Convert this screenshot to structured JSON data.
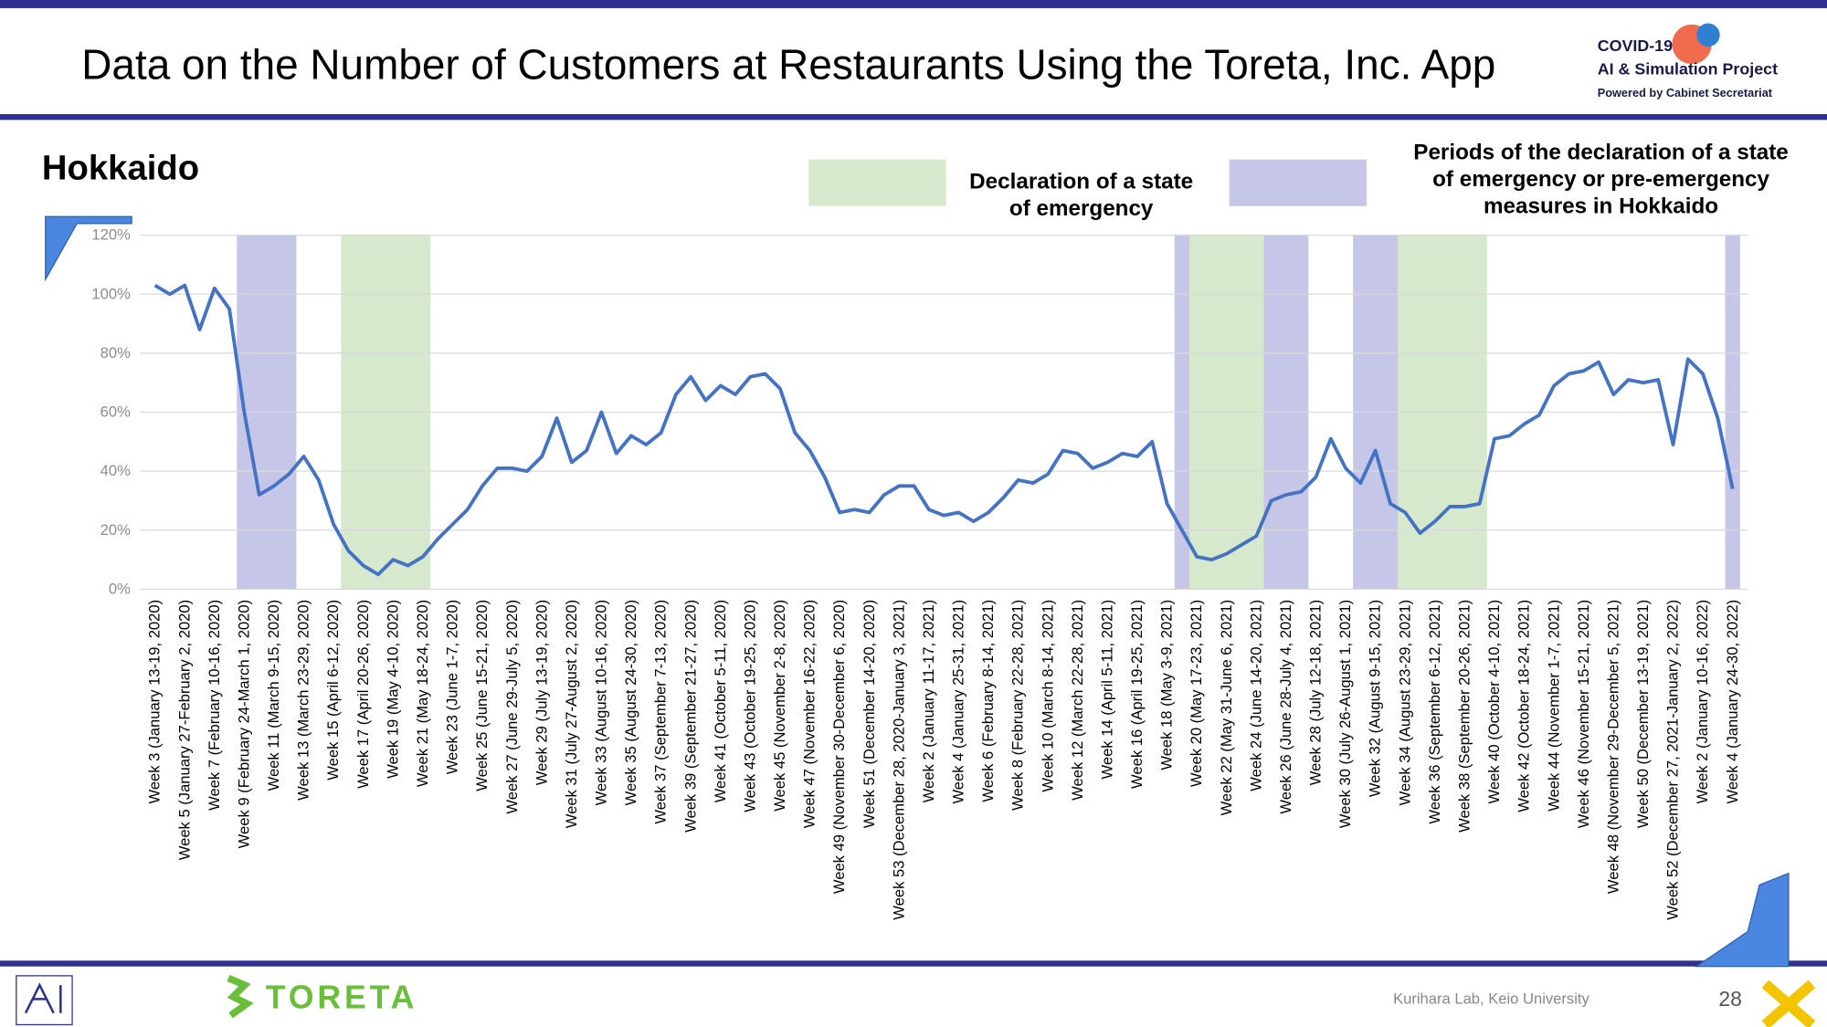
{
  "title": "Data on the Number of Customers at Restaurants Using the Toreta, Inc. App",
  "logo": {
    "line1": "COVID-19",
    "line2": "AI & Simulation Project",
    "line3": "Powered by Cabinet Secretariat"
  },
  "footer": {
    "brand": "TORETA",
    "credit": "Kurihara Lab, Keio University",
    "page": "28"
  },
  "chart_data": {
    "type": "line",
    "title": "Hokkaido",
    "color": "#4472c4",
    "grid": true,
    "ylim": [
      0,
      120
    ],
    "yticks": [
      {
        "value": 0,
        "label": "0%"
      },
      {
        "value": 20,
        "label": "20%"
      },
      {
        "value": 40,
        "label": "40%"
      },
      {
        "value": 60,
        "label": "60%"
      },
      {
        "value": 80,
        "label": "80%"
      },
      {
        "value": 100,
        "label": "100%"
      },
      {
        "value": 120,
        "label": "120%"
      }
    ],
    "categories": [
      "Week 3 (January 13-19, 2020)",
      null,
      "Week 5 (January 27-February 2, 2020)",
      null,
      "Week 7 (February 10-16, 2020)",
      null,
      "Week 9 (February 24-March 1, 2020)",
      null,
      "Week 11 (March 9-15, 2020)",
      null,
      "Week 13 (March 23-29, 2020)",
      null,
      "Week 15 (April 6-12, 2020)",
      null,
      "Week 17 (April 20-26, 2020)",
      null,
      "Week 19 (May 4-10, 2020)",
      null,
      "Week 21 (May 18-24, 2020)",
      null,
      "Week 23 (June 1-7, 2020)",
      null,
      "Week 25 (June 15-21, 2020)",
      null,
      "Week 27 (June 29-July 5, 2020)",
      null,
      "Week 29 (July 13-19, 2020)",
      null,
      "Week 31 (July 27-August 2, 2020)",
      null,
      "Week 33 (August 10-16, 2020)",
      null,
      "Week 35 (August 24-30, 2020)",
      null,
      "Week 37 (September 7-13, 2020)",
      null,
      "Week 39 (September 21-27, 2020)",
      null,
      "Week 41 (October 5-11, 2020)",
      null,
      "Week 43 (October 19-25, 2020)",
      null,
      "Week 45 (November 2-8, 2020)",
      null,
      "Week 47 (November 16-22, 2020)",
      null,
      "Week 49 (November 30-December 6, 2020)",
      null,
      "Week 51 (December 14-20, 2020)",
      null,
      "Week 53 (December 28, 2020-January 3, 2021)",
      null,
      "Week 2 (January 11-17, 2021)",
      null,
      "Week 4 (January 25-31, 2021)",
      null,
      "Week 6 (February 8-14, 2021)",
      null,
      "Week 8 (February 22-28, 2021)",
      null,
      "Week 10 (March 8-14, 2021)",
      null,
      "Week 12 (March 22-28, 2021)",
      null,
      "Week 14 (April 5-11, 2021)",
      null,
      "Week 16 (April 19-25, 2021)",
      null,
      "Week 18 (May 3-9, 2021)",
      null,
      "Week 20 (May 17-23, 2021)",
      null,
      "Week 22 (May 31-June 6, 2021)",
      null,
      "Week 24 (June 14-20, 2021)",
      null,
      "Week 26 (June 28-July 4, 2021)",
      null,
      "Week 28 (July 12-18, 2021)",
      null,
      "Week 30 (July 26-August 1, 2021)",
      null,
      "Week 32 (August 9-15, 2021)",
      null,
      "Week 34 (August 23-29, 2021)",
      null,
      "Week 36 (September 6-12, 2021)",
      null,
      "Week 38 (September 20-26, 2021)",
      null,
      "Week 40 (October 4-10, 2021)",
      null,
      "Week 42 (October 18-24, 2021)",
      null,
      "Week 44 (November 1-7, 2021)",
      null,
      "Week 46 (November 15-21, 2021)",
      null,
      "Week 48 (November 29-December 5, 2021)",
      null,
      "Week 50 (December 13-19, 2021)",
      null,
      "Week 52 (December 27, 2021-January 2, 2022)",
      null,
      "Week 2 (January 10-16, 2022)",
      null,
      "Week 4 (January 24-30, 2022)"
    ],
    "values": [
      103,
      100,
      103,
      88,
      102,
      95,
      60,
      32,
      35,
      39,
      45,
      37,
      22,
      13,
      8,
      5,
      10,
      8,
      11,
      17,
      22,
      27,
      35,
      41,
      41,
      40,
      45,
      58,
      43,
      47,
      60,
      46,
      52,
      49,
      53,
      66,
      72,
      64,
      69,
      66,
      72,
      73,
      68,
      53,
      47,
      38,
      26,
      27,
      26,
      32,
      35,
      35,
      27,
      25,
      26,
      23,
      26,
      31,
      37,
      36,
      39,
      47,
      46,
      41,
      43,
      46,
      45,
      50,
      29,
      20,
      11,
      10,
      12,
      15,
      18,
      30,
      32,
      33,
      38,
      51,
      41,
      36,
      47,
      29,
      26,
      19,
      23,
      28,
      28,
      29,
      51,
      52,
      56,
      59,
      69,
      73,
      74,
      77,
      66,
      71,
      70,
      71,
      49,
      78,
      73,
      58,
      34
    ],
    "shaded": [
      {
        "name": [
          "Declaration of a state",
          "of emergency"
        ],
        "color": "#d6e9cc",
        "ranges": [
          [
            12.5,
            18.5
          ],
          [
            69.5,
            74.5
          ],
          [
            83.5,
            89.5
          ]
        ]
      },
      {
        "name": [
          "Periods of the declaration of a state",
          "of emergency or pre-emergency",
          "measures in Hokkaido"
        ],
        "color": "#c6c6e8",
        "ranges": [
          [
            5.5,
            9.5
          ],
          [
            68.5,
            69.5
          ],
          [
            74.5,
            77.5
          ],
          [
            80.5,
            83.5
          ],
          [
            105.5,
            106.5
          ]
        ]
      }
    ]
  }
}
